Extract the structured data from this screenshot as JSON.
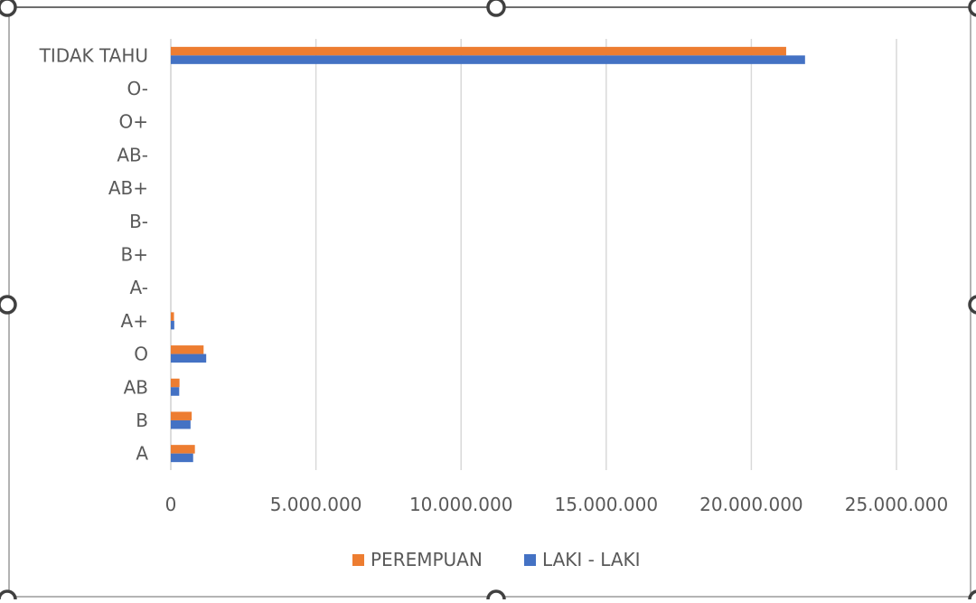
{
  "chart_data": {
    "type": "bar",
    "orientation": "horizontal",
    "categories": [
      "A",
      "B",
      "AB",
      "O",
      "A+",
      "A-",
      "B+",
      "B-",
      "AB+",
      "AB-",
      "O+",
      "O-",
      "TIDAK TAHU"
    ],
    "series": [
      {
        "name": "PEREMPUAN",
        "color": "#ED7D31",
        "values": [
          830000,
          720000,
          300000,
          1130000,
          110000,
          0,
          0,
          0,
          0,
          0,
          0,
          0,
          21200000
        ]
      },
      {
        "name": "LAKI - LAKI",
        "color": "#4472C4",
        "values": [
          770000,
          680000,
          290000,
          1220000,
          120000,
          0,
          0,
          0,
          0,
          0,
          0,
          0,
          21850000
        ]
      }
    ],
    "x_ticks": [
      "0",
      "5.000.000",
      "10.000.000",
      "15.000.000",
      "20.000.000",
      "25.000.000"
    ],
    "xlim": [
      0,
      25000000
    ],
    "grid": true,
    "legend": "bottom",
    "title": "",
    "xlabel": "",
    "ylabel": ""
  }
}
